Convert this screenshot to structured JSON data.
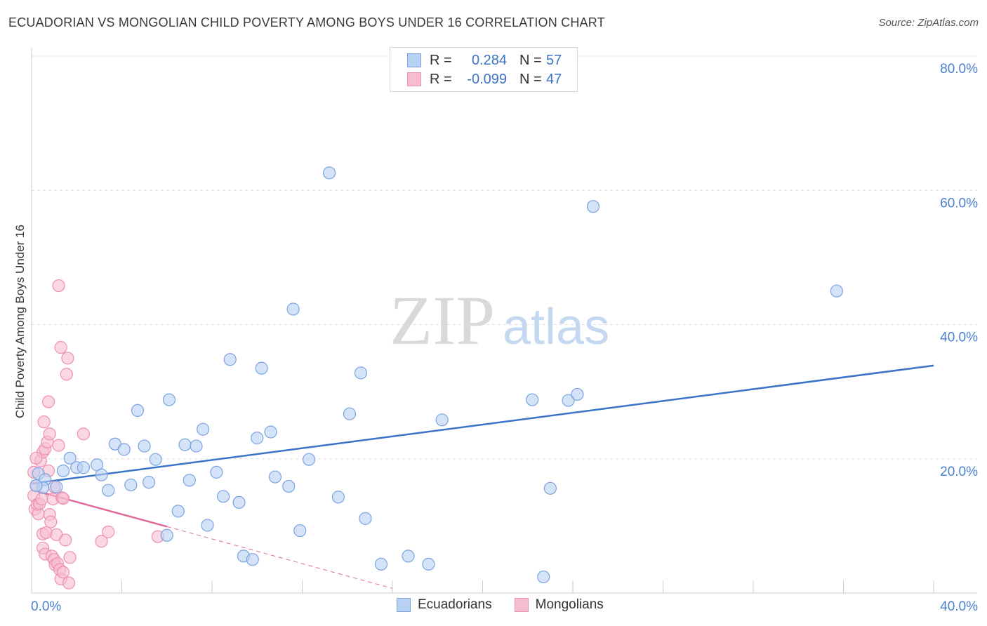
{
  "title": "ECUADORIAN VS MONGOLIAN CHILD POVERTY AMONG BOYS UNDER 16 CORRELATION CHART",
  "source": "Source: ZipAtlas.com",
  "watermark": {
    "zip": "ZIP",
    "atlas": "atlas"
  },
  "colors": {
    "blue": "#3b73c9",
    "blue_fill": "#b9d1f3",
    "blue_stroke": "#7aa4e0",
    "pink": "#e0679a",
    "pink_fill": "#f6bcd1",
    "pink_stroke": "#ee8fb4",
    "grid": "#dcdcdc"
  },
  "legend": {
    "rows": [
      {
        "r_label": "R =",
        "r_value": "0.284",
        "n_label": "N =",
        "n_value": "57"
      },
      {
        "r_label": "R =",
        "r_value": "-0.099",
        "n_label": "N =",
        "n_value": "47"
      }
    ]
  },
  "bottom_legend": [
    "Ecuadorians",
    "Mongolians"
  ],
  "chart_data": {
    "type": "scatter",
    "title": "ECUADORIAN VS MONGOLIAN CHILD POVERTY AMONG BOYS UNDER 16 CORRELATION CHART",
    "xlabel": "",
    "ylabel": "Child Poverty Among Boys Under 16",
    "xlim": [
      0,
      40
    ],
    "ylim": [
      0,
      80
    ],
    "x_tick_labels": [
      "0.0%",
      "40.0%"
    ],
    "y_tick_labels": [
      "20.0%",
      "40.0%",
      "60.0%",
      "80.0%"
    ],
    "y_ticks": [
      20,
      40,
      60,
      80
    ],
    "series": [
      {
        "name": "Ecuadorians",
        "color": "#3b73c9",
        "trend": {
          "x": [
            0,
            40
          ],
          "y": [
            16.3,
            33.9
          ],
          "style": "solid"
        },
        "points": [
          [
            0.3,
            17.8
          ],
          [
            0.6,
            16.9
          ],
          [
            0.5,
            15.7
          ],
          [
            1.1,
            15.8
          ],
          [
            1.4,
            18.2
          ],
          [
            1.7,
            20.1
          ],
          [
            2.0,
            18.7
          ],
          [
            2.3,
            18.7
          ],
          [
            2.9,
            19.1
          ],
          [
            3.1,
            17.6
          ],
          [
            3.4,
            15.3
          ],
          [
            3.7,
            22.2
          ],
          [
            4.1,
            21.4
          ],
          [
            4.4,
            16.1
          ],
          [
            4.7,
            27.2
          ],
          [
            5.0,
            21.9
          ],
          [
            5.2,
            16.5
          ],
          [
            5.5,
            19.9
          ],
          [
            6.0,
            8.6
          ],
          [
            6.1,
            28.8
          ],
          [
            6.5,
            12.2
          ],
          [
            6.8,
            22.1
          ],
          [
            7.0,
            16.8
          ],
          [
            7.3,
            21.9
          ],
          [
            7.6,
            24.4
          ],
          [
            7.8,
            10.1
          ],
          [
            8.2,
            18.0
          ],
          [
            8.5,
            14.4
          ],
          [
            8.8,
            34.8
          ],
          [
            9.2,
            13.5
          ],
          [
            9.4,
            5.5
          ],
          [
            9.8,
            5.0
          ],
          [
            10.0,
            23.1
          ],
          [
            10.2,
            33.5
          ],
          [
            10.6,
            24.0
          ],
          [
            10.8,
            17.3
          ],
          [
            11.4,
            15.9
          ],
          [
            11.6,
            42.3
          ],
          [
            11.9,
            9.3
          ],
          [
            12.3,
            19.9
          ],
          [
            13.2,
            62.6
          ],
          [
            13.6,
            14.3
          ],
          [
            14.1,
            26.7
          ],
          [
            14.6,
            32.8
          ],
          [
            14.8,
            11.1
          ],
          [
            15.5,
            4.3
          ],
          [
            16.7,
            5.5
          ],
          [
            17.6,
            4.3
          ],
          [
            18.2,
            25.8
          ],
          [
            22.2,
            28.8
          ],
          [
            22.7,
            2.4
          ],
          [
            23.0,
            15.6
          ],
          [
            23.8,
            28.7
          ],
          [
            24.2,
            29.6
          ],
          [
            24.9,
            57.6
          ],
          [
            35.7,
            45.0
          ],
          [
            0.2,
            16.0
          ]
        ]
      },
      {
        "name": "Mongolians",
        "color": "#e0679a",
        "trend": {
          "x": [
            0,
            6.0,
            16.0
          ],
          "y": [
            15.4,
            9.9,
            0.7
          ],
          "style": "solid-then-dashed"
        },
        "points": [
          [
            0.1,
            18.0
          ],
          [
            0.1,
            14.5
          ],
          [
            0.15,
            12.5
          ],
          [
            0.2,
            16.0
          ],
          [
            0.25,
            13.2
          ],
          [
            0.3,
            11.8
          ],
          [
            0.35,
            13.3
          ],
          [
            0.4,
            19.7
          ],
          [
            0.45,
            14.0
          ],
          [
            0.5,
            6.7
          ],
          [
            0.5,
            8.8
          ],
          [
            0.5,
            21.0
          ],
          [
            0.55,
            25.5
          ],
          [
            0.6,
            5.8
          ],
          [
            0.6,
            21.5
          ],
          [
            0.65,
            9.0
          ],
          [
            0.7,
            22.5
          ],
          [
            0.75,
            28.5
          ],
          [
            0.75,
            18.2
          ],
          [
            0.8,
            23.7
          ],
          [
            0.8,
            11.7
          ],
          [
            0.85,
            10.6
          ],
          [
            0.9,
            5.5
          ],
          [
            0.95,
            14.0
          ],
          [
            1.0,
            5.0
          ],
          [
            1.0,
            15.8
          ],
          [
            1.05,
            4.2
          ],
          [
            1.1,
            8.7
          ],
          [
            1.15,
            4.4
          ],
          [
            1.2,
            22.0
          ],
          [
            1.2,
            45.8
          ],
          [
            1.25,
            3.5
          ],
          [
            1.3,
            36.6
          ],
          [
            1.3,
            2.1
          ],
          [
            1.35,
            14.2
          ],
          [
            1.4,
            14.1
          ],
          [
            1.4,
            3.1
          ],
          [
            1.5,
            7.9
          ],
          [
            1.55,
            32.6
          ],
          [
            1.6,
            35.0
          ],
          [
            1.65,
            1.5
          ],
          [
            1.7,
            5.3
          ],
          [
            2.3,
            23.7
          ],
          [
            3.1,
            7.7
          ],
          [
            3.4,
            9.1
          ],
          [
            5.6,
            8.4
          ],
          [
            0.2,
            20.1
          ]
        ]
      }
    ]
  }
}
